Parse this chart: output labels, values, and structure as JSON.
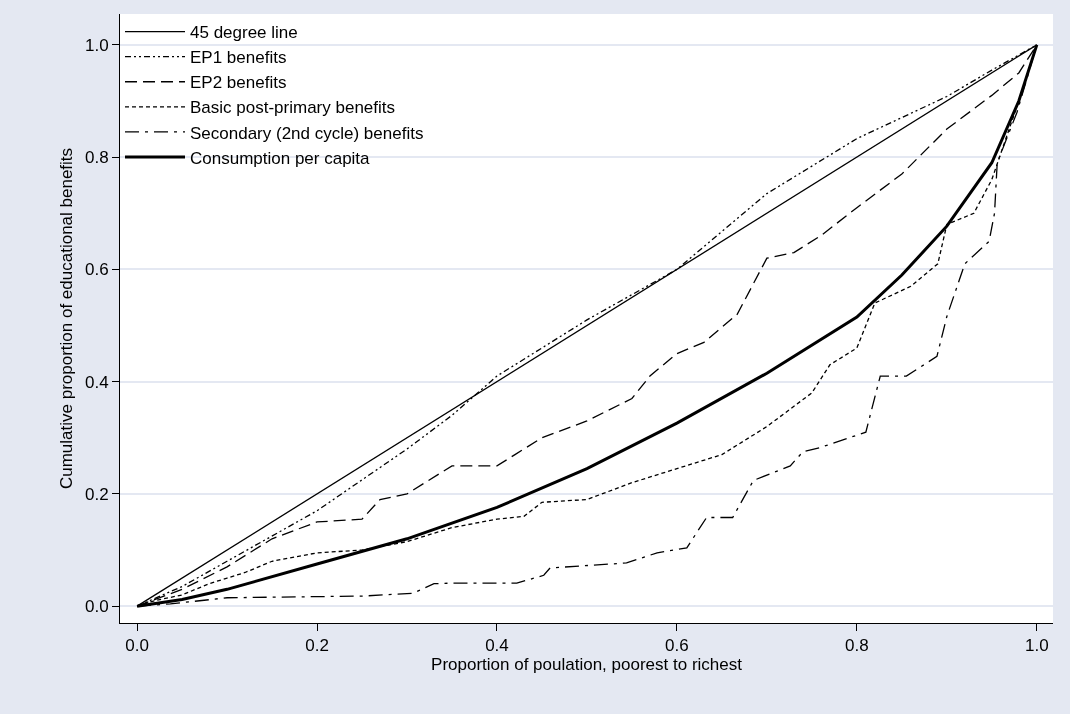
{
  "chart_data": {
    "type": "line",
    "xlabel": "Proportion of poulation, poorest to richest",
    "ylabel": "Cumulative proportion of educational benefits",
    "xlim": [
      -0.019,
      1.018
    ],
    "ylim": [
      -0.03,
      1.055
    ],
    "xticks": [
      {
        "value": 0,
        "label": "0.0"
      },
      {
        "value": 0.2,
        "label": "0.2"
      },
      {
        "value": 0.4,
        "label": "0.4"
      },
      {
        "value": 0.6,
        "label": "0.6"
      },
      {
        "value": 0.8,
        "label": "0.8"
      },
      {
        "value": 1,
        "label": "1.0"
      }
    ],
    "yticks": [
      {
        "value": 0,
        "label": "0.0"
      },
      {
        "value": 0.2,
        "label": "0.2"
      },
      {
        "value": 0.4,
        "label": "0.4"
      },
      {
        "value": 0.6,
        "label": "0.6"
      },
      {
        "value": 0.8,
        "label": "0.8"
      },
      {
        "value": 1,
        "label": "1.0"
      }
    ],
    "grid": "y",
    "legend": "top left",
    "marker": "none",
    "series": [
      {
        "name": "45 degree line",
        "color": "#000000",
        "line_style": "solid",
        "x": [
          0,
          1
        ],
        "values": [
          0,
          1
        ]
      },
      {
        "name": "EP1 benefits",
        "color": "#000000",
        "line_style": "dashdotdot",
        "x": [
          0,
          0.05,
          0.1,
          0.2,
          0.3,
          0.35,
          0.4,
          0.5,
          0.6,
          0.7,
          0.8,
          0.9,
          0.95,
          1
        ],
        "values": [
          0,
          0.035,
          0.08,
          0.17,
          0.28,
          0.34,
          0.41,
          0.51,
          0.6,
          0.735,
          0.833,
          0.908,
          0.955,
          1
        ]
      },
      {
        "name": "EP2 benefits",
        "color": "#000000",
        "line_style": "longdash",
        "x": [
          0,
          0.05,
          0.1,
          0.15,
          0.2,
          0.25,
          0.27,
          0.3,
          0.35,
          0.4,
          0.42,
          0.45,
          0.5,
          0.55,
          0.57,
          0.6,
          0.63,
          0.667,
          0.7,
          0.73,
          0.76,
          0.8,
          0.85,
          0.9,
          0.95,
          0.98,
          1
        ],
        "values": [
          0,
          0.03,
          0.07,
          0.12,
          0.15,
          0.155,
          0.19,
          0.2,
          0.25,
          0.25,
          0.27,
          0.3,
          0.33,
          0.37,
          0.41,
          0.45,
          0.47,
          0.52,
          0.62,
          0.63,
          0.66,
          0.71,
          0.77,
          0.85,
          0.91,
          0.95,
          1
        ]
      },
      {
        "name": "Basic post-primary benefits",
        "color": "#000000",
        "line_style": "dashed",
        "x": [
          0,
          0.02,
          0.05,
          0.08,
          0.1,
          0.12,
          0.15,
          0.2,
          0.25,
          0.3,
          0.35,
          0.4,
          0.43,
          0.45,
          0.5,
          0.55,
          0.6,
          0.65,
          0.7,
          0.75,
          0.77,
          0.8,
          0.82,
          0.86,
          0.89,
          0.9,
          0.93,
          0.95,
          0.98,
          1
        ],
        "values": [
          0,
          0.01,
          0.02,
          0.04,
          0.05,
          0.06,
          0.08,
          0.095,
          0.1,
          0.115,
          0.14,
          0.155,
          0.16,
          0.185,
          0.19,
          0.22,
          0.245,
          0.27,
          0.32,
          0.38,
          0.43,
          0.46,
          0.54,
          0.57,
          0.61,
          0.68,
          0.7,
          0.76,
          0.9,
          1
        ]
      },
      {
        "name": "Secondary (2nd cycle) benefits",
        "color": "#000000",
        "line_style": "longdashdot",
        "x": [
          0,
          0.037,
          0.1,
          0.251,
          0.307,
          0.33,
          0.348,
          0.422,
          0.452,
          0.459,
          0.544,
          0.578,
          0.611,
          0.633,
          0.662,
          0.685,
          0.726,
          0.74,
          0.76,
          0.81,
          0.826,
          0.855,
          0.889,
          0.9,
          0.92,
          0.947,
          0.953,
          0.956,
          0.978,
          1
        ],
        "values": [
          0,
          0.004,
          0.015,
          0.018,
          0.023,
          0.04,
          0.041,
          0.041,
          0.055,
          0.068,
          0.077,
          0.095,
          0.104,
          0.158,
          0.158,
          0.224,
          0.25,
          0.275,
          0.283,
          0.31,
          0.41,
          0.41,
          0.445,
          0.516,
          0.61,
          0.65,
          0.7,
          0.79,
          0.88,
          1
        ]
      },
      {
        "name": "Consumption per capita",
        "color": "#000000",
        "line_style": "solid",
        "x": [
          0,
          0.05,
          0.1,
          0.2,
          0.3,
          0.4,
          0.5,
          0.6,
          0.7,
          0.8,
          0.85,
          0.9,
          0.95,
          0.98,
          1
        ],
        "values": [
          0,
          0.012,
          0.03,
          0.075,
          0.12,
          0.176,
          0.245,
          0.326,
          0.415,
          0.515,
          0.59,
          0.677,
          0.79,
          0.9,
          1
        ]
      }
    ]
  }
}
